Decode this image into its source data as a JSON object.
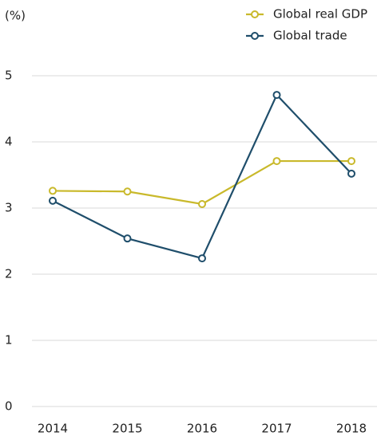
{
  "chart_data": {
    "type": "line",
    "y_label": "(%)",
    "categories": [
      "2014",
      "2015",
      "2016",
      "2017",
      "2018"
    ],
    "series": [
      {
        "name": "Global real GDP",
        "color": "#c9b92b",
        "values": [
          3.26,
          3.25,
          3.06,
          3.71,
          3.71
        ]
      },
      {
        "name": "Global trade",
        "color": "#1f4e6b",
        "values": [
          3.11,
          2.54,
          2.24,
          4.71,
          3.52
        ]
      }
    ],
    "ylim": [
      0,
      5
    ],
    "yticks": [
      0,
      1,
      2,
      3,
      4,
      5
    ],
    "grid": true,
    "legend": "top-right"
  }
}
